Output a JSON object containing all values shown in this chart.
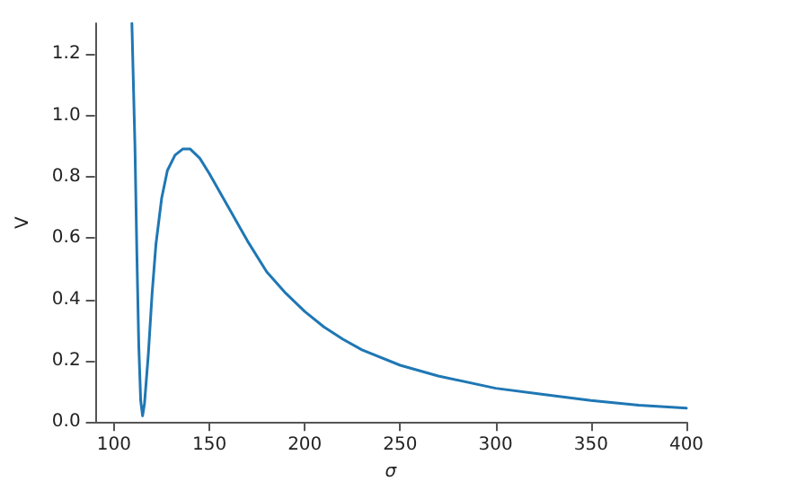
{
  "chart_data": {
    "type": "line",
    "xlabel": "σ",
    "ylabel": "V",
    "xlim": [
      90,
      400
    ],
    "xticks": [
      100,
      150,
      200,
      250,
      300,
      350,
      400
    ],
    "ylim": [
      0,
      1.3
    ],
    "yticks": [
      {
        "value": 0,
        "label": "0.0"
      },
      0.2,
      0.4,
      0.6,
      0.8,
      {
        "value": 1,
        "label": "1.0"
      },
      1.2
    ],
    "grid": false,
    "marker": "none",
    "line_style": "solid",
    "series": [
      {
        "color": "#1f77b4",
        "x": [
          109.4,
          110,
          111,
          112,
          113,
          114,
          115,
          116,
          118,
          120,
          122,
          125,
          128,
          132,
          136,
          140,
          145,
          150,
          160,
          170,
          180,
          190,
          200,
          210,
          220,
          230,
          250,
          270,
          300,
          325,
          350,
          375,
          400
        ],
        "values": [
          1.3,
          1.15,
          0.9,
          0.55,
          0.25,
          0.07,
          0.02,
          0.06,
          0.22,
          0.42,
          0.58,
          0.73,
          0.82,
          0.87,
          0.89,
          0.89,
          0.86,
          0.81,
          0.7,
          0.59,
          0.49,
          0.42,
          0.36,
          0.31,
          0.27,
          0.235,
          0.185,
          0.15,
          0.11,
          0.09,
          0.07,
          0.055,
          0.045
        ]
      }
    ]
  }
}
